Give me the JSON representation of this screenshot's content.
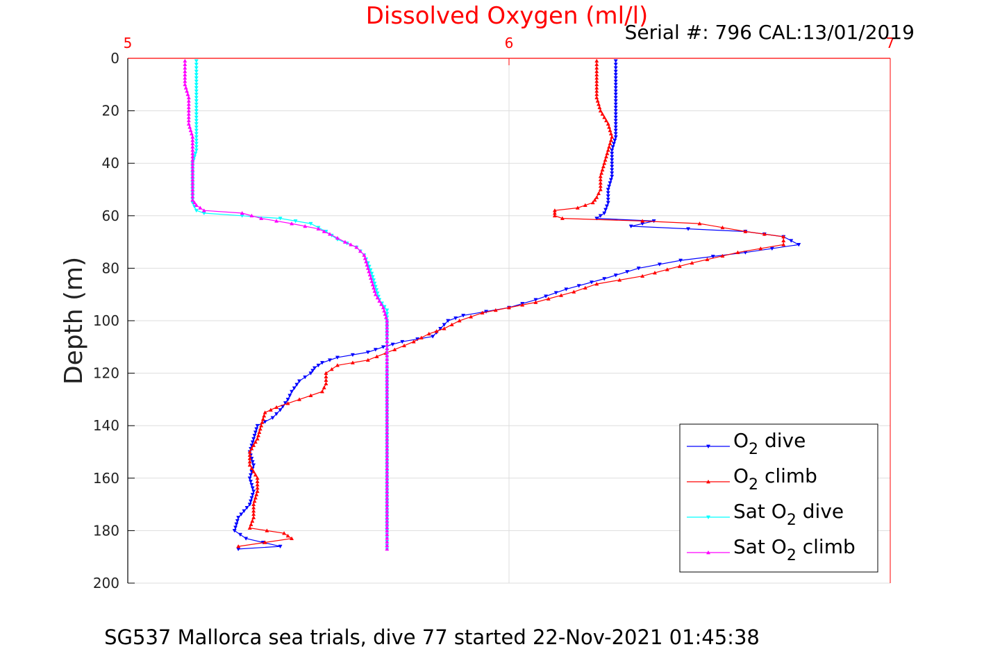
{
  "chart_data": {
    "type": "line",
    "title": "Dissolved Oxygen (ml/l)",
    "subtitle": "Serial #: 796  CAL:13/01/2019",
    "caption": "SG537 Mallorca sea trials, dive 77 started 22-Nov-2021 01:45:38",
    "xlabel": "",
    "ylabel": "Depth (m)",
    "xlim": [
      5,
      7
    ],
    "ylim": [
      0,
      200
    ],
    "y_reversed": true,
    "x_axis_position": "top",
    "xticks": [
      "5",
      "6",
      "7"
    ],
    "yticks": [
      "0",
      "20",
      "40",
      "60",
      "80",
      "100",
      "120",
      "140",
      "160",
      "180",
      "200"
    ],
    "grid": true,
    "legend_position": "bottom-right",
    "colors": {
      "title": "#ff0000",
      "xtick": "#ff0000",
      "grid": "#dddddd"
    },
    "series": [
      {
        "name": "O₂ dive",
        "legend_main": "O",
        "legend_sub": "2",
        "legend_tail": " dive",
        "color": "#0000ff",
        "marker": "triangle-down",
        "points": [
          [
            6.28,
            1
          ],
          [
            6.28,
            5
          ],
          [
            6.28,
            10
          ],
          [
            6.28,
            15
          ],
          [
            6.28,
            20
          ],
          [
            6.28,
            25
          ],
          [
            6.28,
            30
          ],
          [
            6.27,
            35
          ],
          [
            6.27,
            40
          ],
          [
            6.27,
            45
          ],
          [
            6.26,
            50
          ],
          [
            6.26,
            55
          ],
          [
            6.25,
            59
          ],
          [
            6.23,
            61
          ],
          [
            6.38,
            62
          ],
          [
            6.32,
            64
          ],
          [
            6.62,
            66
          ],
          [
            6.72,
            68
          ],
          [
            6.76,
            71
          ],
          [
            6.62,
            74
          ],
          [
            6.45,
            77
          ],
          [
            6.34,
            80
          ],
          [
            6.25,
            84
          ],
          [
            6.15,
            88
          ],
          [
            6.07,
            92
          ],
          [
            6.0,
            95
          ],
          [
            5.88,
            98
          ],
          [
            5.84,
            100
          ],
          [
            5.82,
            103
          ],
          [
            5.8,
            106
          ],
          [
            5.72,
            108
          ],
          [
            5.67,
            110
          ],
          [
            5.63,
            112
          ],
          [
            5.55,
            114
          ],
          [
            5.51,
            116
          ],
          [
            5.49,
            118
          ],
          [
            5.48,
            120
          ],
          [
            5.45,
            123
          ],
          [
            5.43,
            127
          ],
          [
            5.42,
            130
          ],
          [
            5.4,
            134
          ],
          [
            5.38,
            137
          ],
          [
            5.34,
            140
          ],
          [
            5.33,
            145
          ],
          [
            5.32,
            150
          ],
          [
            5.33,
            155
          ],
          [
            5.32,
            160
          ],
          [
            5.33,
            165
          ],
          [
            5.32,
            170
          ],
          [
            5.29,
            175
          ],
          [
            5.28,
            180
          ],
          [
            5.31,
            183
          ],
          [
            5.4,
            186
          ],
          [
            5.29,
            187
          ],
          [
            5.29,
            187
          ]
        ]
      },
      {
        "name": "O₂ climb",
        "legend_main": "O",
        "legend_sub": "2",
        "legend_tail": " climb",
        "color": "#ff0000",
        "marker": "triangle-up",
        "points": [
          [
            5.29,
            186
          ],
          [
            5.43,
            183
          ],
          [
            5.41,
            181
          ],
          [
            5.32,
            179
          ],
          [
            5.33,
            175
          ],
          [
            5.33,
            170
          ],
          [
            5.34,
            165
          ],
          [
            5.34,
            160
          ],
          [
            5.32,
            155
          ],
          [
            5.32,
            150
          ],
          [
            5.34,
            145
          ],
          [
            5.35,
            140
          ],
          [
            5.36,
            135
          ],
          [
            5.39,
            133
          ],
          [
            5.45,
            130
          ],
          [
            5.51,
            127
          ],
          [
            5.52,
            124
          ],
          [
            5.52,
            120
          ],
          [
            5.55,
            117
          ],
          [
            5.63,
            115
          ],
          [
            5.7,
            111
          ],
          [
            5.75,
            108
          ],
          [
            5.79,
            105
          ],
          [
            5.83,
            103
          ],
          [
            5.87,
            100
          ],
          [
            5.93,
            97
          ],
          [
            6.0,
            95
          ],
          [
            6.07,
            93
          ],
          [
            6.17,
            89
          ],
          [
            6.23,
            86
          ],
          [
            6.35,
            83
          ],
          [
            6.48,
            78
          ],
          [
            6.6,
            74
          ],
          [
            6.72,
            71
          ],
          [
            6.72,
            68
          ],
          [
            6.62,
            66
          ],
          [
            6.5,
            63
          ],
          [
            6.35,
            62
          ],
          [
            6.14,
            61
          ],
          [
            6.12,
            60
          ],
          [
            6.12,
            58
          ],
          [
            6.18,
            57
          ],
          [
            6.22,
            55
          ],
          [
            6.23,
            53
          ],
          [
            6.24,
            50
          ],
          [
            6.24,
            45
          ],
          [
            6.25,
            40
          ],
          [
            6.26,
            35
          ],
          [
            6.27,
            30
          ],
          [
            6.26,
            25
          ],
          [
            6.24,
            20
          ],
          [
            6.23,
            15
          ],
          [
            6.23,
            10
          ],
          [
            6.23,
            5
          ],
          [
            6.23,
            1
          ]
        ]
      },
      {
        "name": "Sat O₂ dive",
        "legend_main": "Sat O",
        "legend_sub": "2",
        "legend_tail": " dive",
        "color": "#00ffff",
        "marker": "triangle-down",
        "points": [
          [
            5.18,
            1
          ],
          [
            5.18,
            5
          ],
          [
            5.18,
            10
          ],
          [
            5.18,
            15
          ],
          [
            5.18,
            20
          ],
          [
            5.18,
            25
          ],
          [
            5.18,
            30
          ],
          [
            5.18,
            35
          ],
          [
            5.17,
            40
          ],
          [
            5.17,
            45
          ],
          [
            5.17,
            50
          ],
          [
            5.17,
            55
          ],
          [
            5.18,
            58
          ],
          [
            5.2,
            59
          ],
          [
            5.3,
            60
          ],
          [
            5.4,
            61
          ],
          [
            5.48,
            63
          ],
          [
            5.52,
            66
          ],
          [
            5.55,
            69
          ],
          [
            5.6,
            72
          ],
          [
            5.62,
            75
          ],
          [
            5.63,
            78
          ],
          [
            5.64,
            82
          ],
          [
            5.65,
            87
          ],
          [
            5.66,
            92
          ],
          [
            5.68,
            96
          ],
          [
            5.68,
            100
          ],
          [
            5.68,
            105
          ],
          [
            5.68,
            110
          ],
          [
            5.68,
            115
          ],
          [
            5.68,
            120
          ],
          [
            5.68,
            130
          ],
          [
            5.68,
            140
          ],
          [
            5.68,
            150
          ],
          [
            5.68,
            160
          ],
          [
            5.68,
            170
          ],
          [
            5.68,
            180
          ],
          [
            5.68,
            187
          ]
        ]
      },
      {
        "name": "Sat O₂ climb",
        "legend_main": "Sat O",
        "legend_sub": "2",
        "legend_tail": " climb",
        "color": "#ff00ff",
        "marker": "triangle-up",
        "points": [
          [
            5.68,
            187
          ],
          [
            5.68,
            180
          ],
          [
            5.68,
            170
          ],
          [
            5.68,
            160
          ],
          [
            5.68,
            150
          ],
          [
            5.68,
            140
          ],
          [
            5.68,
            130
          ],
          [
            5.68,
            120
          ],
          [
            5.68,
            112
          ],
          [
            5.68,
            105
          ],
          [
            5.68,
            100
          ],
          [
            5.67,
            95
          ],
          [
            5.65,
            90
          ],
          [
            5.64,
            85
          ],
          [
            5.63,
            80
          ],
          [
            5.62,
            75
          ],
          [
            5.6,
            72
          ],
          [
            5.57,
            70
          ],
          [
            5.53,
            67
          ],
          [
            5.5,
            65
          ],
          [
            5.43,
            63
          ],
          [
            5.35,
            61
          ],
          [
            5.3,
            59
          ],
          [
            5.2,
            58
          ],
          [
            5.18,
            56
          ],
          [
            5.17,
            54
          ],
          [
            5.17,
            50
          ],
          [
            5.17,
            45
          ],
          [
            5.17,
            40
          ],
          [
            5.17,
            35
          ],
          [
            5.17,
            30
          ],
          [
            5.16,
            25
          ],
          [
            5.16,
            20
          ],
          [
            5.16,
            15
          ],
          [
            5.15,
            10
          ],
          [
            5.15,
            5
          ],
          [
            5.15,
            1
          ]
        ]
      }
    ]
  }
}
